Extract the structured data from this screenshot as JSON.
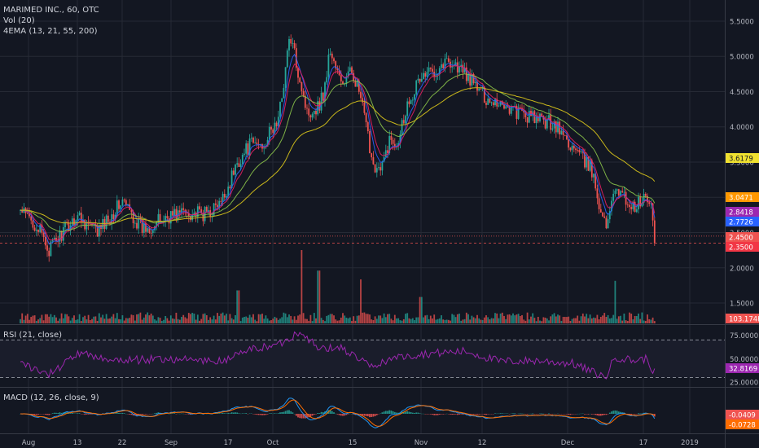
{
  "legend": {
    "symbol": "MARIMED INC., 60, OTC",
    "volume": "Vol (20)",
    "ema": "4EMA (13, 21, 55, 200)",
    "rsi": "RSI (21, close)",
    "macd": "MACD (12, 26, close, 9)"
  },
  "colors": {
    "background": "#131722",
    "grid": "#262a35",
    "up": "#26a69a",
    "down": "#ef5350",
    "ema13": "#2962ff",
    "ema21": "#e91e63",
    "ema55": "#8bc34a",
    "ema200": "#c9b71b",
    "rsi": "#9c27b0",
    "macd_line": "#2196f3",
    "signal_line": "#ff6d00"
  },
  "chart_data": [
    {
      "type": "candlestick",
      "title": "MARIMED INC., 60, OTC",
      "x_ticks": [
        "Aug",
        "13",
        "22",
        "Sep",
        "17",
        "Oct",
        "15",
        "Nov",
        "12",
        "Dec",
        "17",
        "2019"
      ],
      "y_ticks": [
        "1.5000",
        "2.0000",
        "2.5000",
        "3.0000",
        "3.5000",
        "4.0000",
        "4.5000",
        "5.0000",
        "5.5000"
      ],
      "ylim": [
        1.2,
        5.8
      ],
      "waypoints_x": [
        "Jul 30",
        "Aug 3",
        "Aug 6",
        "Aug 10",
        "Aug 13",
        "Aug 17",
        "Aug 22",
        "Aug 26",
        "Aug 28",
        "Sep 1",
        "Sep 5",
        "Sep 10",
        "Sep 15",
        "Sep 20",
        "Sep 24",
        "Sep 28",
        "Oct 2",
        "Oct 4",
        "Oct 6",
        "Oct 7",
        "Oct 9",
        "Oct 10",
        "Oct 11",
        "Oct 13",
        "Oct 15",
        "Oct 17",
        "Oct 20",
        "Oct 22",
        "Oct 24",
        "Oct 26",
        "Oct 29",
        "Nov 1",
        "Nov 3",
        "Nov 6",
        "Nov 9",
        "Nov 13",
        "Nov 16",
        "Nov 20",
        "Nov 24",
        "Nov 28",
        "Dec 2",
        "Dec 6",
        "Dec 9",
        "Dec 11",
        "Dec 12",
        "Dec 15",
        "Dec 18",
        "Dec 20",
        "Dec 21"
      ],
      "waypoints_price": [
        2.8,
        2.6,
        2.25,
        2.55,
        2.75,
        2.5,
        2.95,
        2.55,
        2.6,
        2.75,
        2.8,
        2.75,
        2.9,
        3.5,
        3.75,
        3.75,
        4.1,
        5.3,
        4.6,
        4.2,
        4.3,
        4.5,
        5.1,
        4.6,
        4.8,
        4.4,
        3.5,
        3.35,
        3.8,
        3.8,
        4.4,
        4.7,
        4.8,
        4.95,
        4.75,
        4.4,
        4.35,
        4.2,
        4.1,
        4.05,
        3.7,
        3.4,
        2.55,
        3.2,
        3.05,
        2.85,
        3.0,
        2.75,
        2.35
      ],
      "annotations": [
        "3.6179",
        "3.0471",
        "2.8418",
        "2.7726",
        "2.4500",
        "2.3500"
      ],
      "series": [
        {
          "name": "EMA 13",
          "label": "2.8418"
        },
        {
          "name": "EMA 21",
          "label": "2.7726"
        },
        {
          "name": "EMA 55",
          "label": "3.0471"
        },
        {
          "name": "EMA 200",
          "label": "3.6179"
        }
      ],
      "grid": true,
      "current_price": "2.3500",
      "support_price": "2.4500"
    },
    {
      "type": "bar",
      "title": "Vol (20)",
      "annotations": [
        "103.174K"
      ],
      "spikes": [
        {
          "date": "Oct 6",
          "relative_height": 1.0
        },
        {
          "date": "Oct 9",
          "relative_height": 0.72
        },
        {
          "date": "Oct 17",
          "relative_height": 0.6
        },
        {
          "date": "Dec 11",
          "relative_height": 0.58
        },
        {
          "date": "Nov 1",
          "relative_height": 0.36
        },
        {
          "date": "Sep 20",
          "relative_height": 0.45
        }
      ]
    },
    {
      "type": "line",
      "title": "RSI (21, close)",
      "y_ticks": [
        "25.0000",
        "50.0000",
        "75.0000"
      ],
      "ylim": [
        20,
        85
      ],
      "bands": [
        70,
        30
      ],
      "series": [
        {
          "name": "RSI",
          "label": "32.8169"
        }
      ],
      "waypoints_x": [
        "Jul 30",
        "Aug 6",
        "Aug 13",
        "Aug 22",
        "Sep 1",
        "Sep 15",
        "Sep 24",
        "Oct 2",
        "Oct 6",
        "Oct 9",
        "Oct 13",
        "Oct 20",
        "Oct 24",
        "Nov 1",
        "Nov 9",
        "Nov 16",
        "Nov 24",
        "Dec 2",
        "Dec 9",
        "Dec 11",
        "Dec 15",
        "Dec 18",
        "Dec 21"
      ],
      "waypoints_value": [
        45,
        33,
        55,
        48,
        50,
        47,
        60,
        65,
        80,
        60,
        62,
        40,
        50,
        55,
        58,
        47,
        48,
        45,
        30,
        52,
        48,
        50,
        33
      ]
    },
    {
      "type": "line",
      "title": "MACD (12, 26, close, 9)",
      "annotations": [
        "-0.0409",
        "-0.0728"
      ],
      "series": [
        {
          "name": "MACD",
          "label": "-0.0409"
        },
        {
          "name": "Signal",
          "label": "-0.0728"
        }
      ]
    }
  ]
}
